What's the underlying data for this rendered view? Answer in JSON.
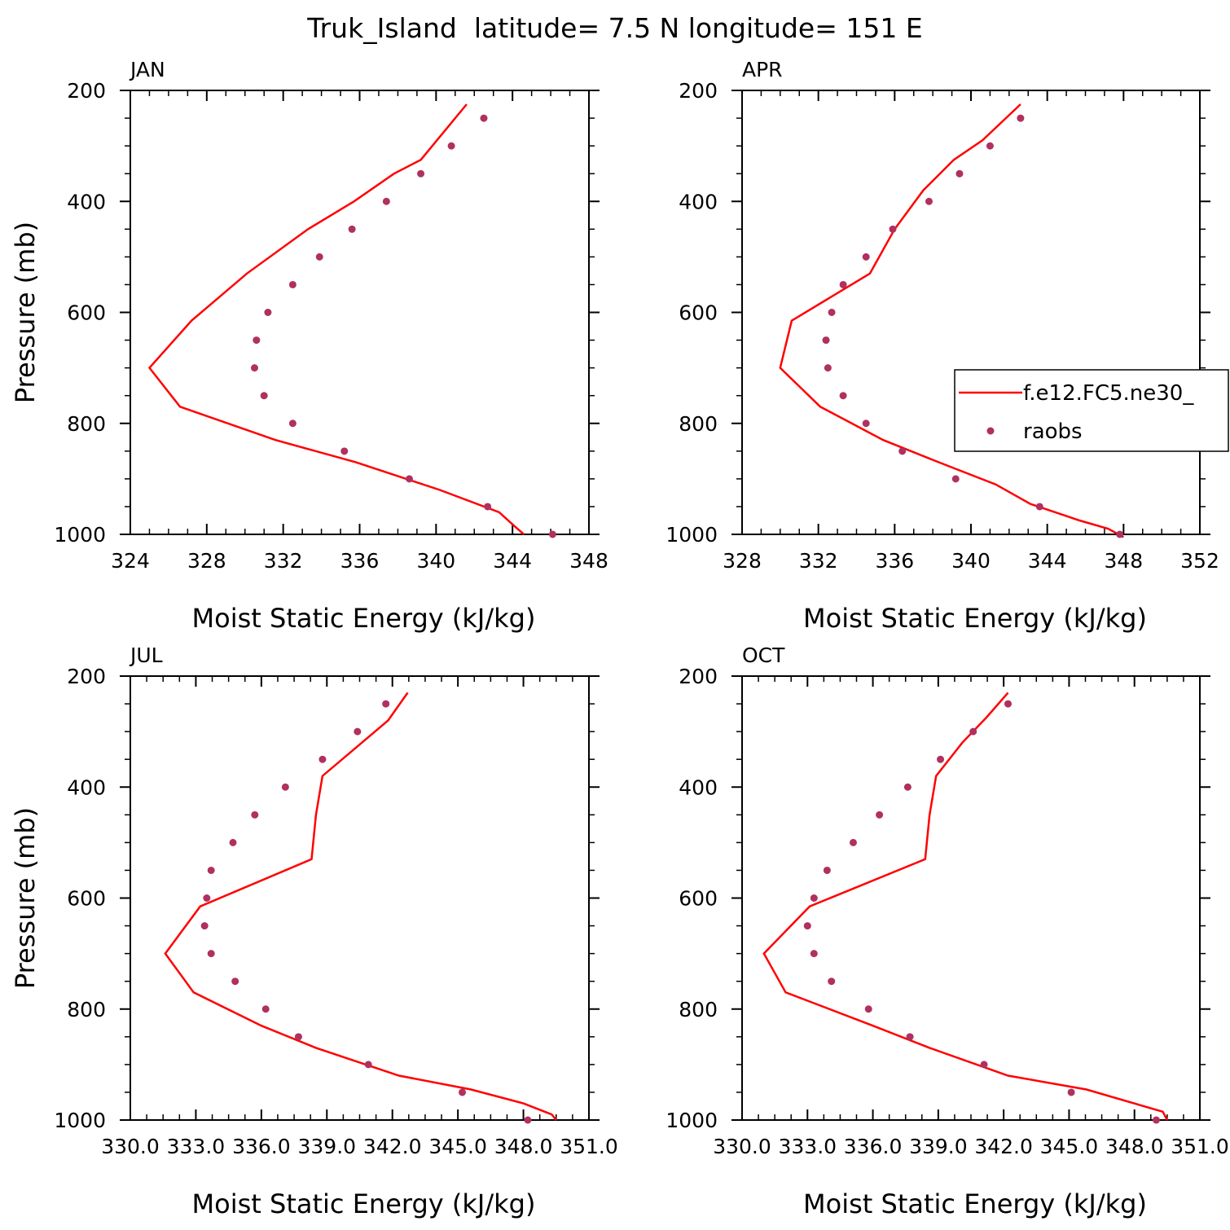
{
  "figure_title": "Truk_Island  latitude= 7.5 N longitude= 151 E",
  "colors": {
    "model": "#ff0000",
    "obs": "#b03060",
    "axis": "#000000"
  },
  "legend": {
    "model_label": "f.e12.FC5.ne30_",
    "obs_label": "raobs",
    "panel_month": "APR"
  },
  "chart_data": [
    {
      "type": "line",
      "month": "JAN",
      "xlabel": "Moist Static Energy (kJ/kg)",
      "ylabel": "Pressure (mb)",
      "xlim": [
        324,
        348
      ],
      "x_ticks": [
        324,
        328,
        332,
        336,
        340,
        344,
        348
      ],
      "x_tick_labels": [
        "324",
        "328",
        "332",
        "336",
        "340",
        "344",
        "348"
      ],
      "ylim": [
        200,
        1000
      ],
      "y_ticks": [
        200,
        400,
        600,
        800,
        1000
      ],
      "y_tick_labels": [
        "200",
        "400",
        "600",
        "800",
        "1000"
      ],
      "model": {
        "name": "f.e12.FC5.ne30_",
        "pressure": [
          225,
          325,
          350,
          400,
          450,
          530,
          615,
          700,
          770,
          830,
          870,
          920,
          960,
          985,
          1000
        ],
        "mse": [
          341.6,
          339.2,
          337.8,
          335.7,
          333.3,
          330.1,
          327.2,
          325.0,
          326.6,
          331.6,
          335.8,
          340.2,
          343.3,
          344.1,
          344.6
        ]
      },
      "obs": {
        "name": "raobs",
        "pressure": [
          250,
          300,
          350,
          400,
          450,
          500,
          550,
          600,
          650,
          700,
          750,
          800,
          850,
          900,
          950,
          1000
        ],
        "mse": [
          342.5,
          340.8,
          339.2,
          337.4,
          335.6,
          333.9,
          332.5,
          331.2,
          330.6,
          330.5,
          331.0,
          332.5,
          335.2,
          338.6,
          342.7,
          346.1
        ]
      }
    },
    {
      "type": "line",
      "month": "APR",
      "xlabel": "Moist Static Energy (kJ/kg)",
      "ylabel": "",
      "xlim": [
        328,
        352
      ],
      "x_ticks": [
        328,
        332,
        336,
        340,
        344,
        348,
        352
      ],
      "x_tick_labels": [
        "328",
        "332",
        "336",
        "340",
        "344",
        "348",
        "352"
      ],
      "ylim": [
        200,
        1000
      ],
      "y_ticks": [
        200,
        400,
        600,
        800,
        1000
      ],
      "y_tick_labels": [
        "200",
        "400",
        "600",
        "800",
        "1000"
      ],
      "model": {
        "name": "f.e12.FC5.ne30_",
        "pressure": [
          225,
          290,
          325,
          380,
          450,
          530,
          615,
          700,
          770,
          830,
          870,
          910,
          945,
          975,
          990,
          1005
        ],
        "mse": [
          342.6,
          340.6,
          339.1,
          337.5,
          336.0,
          334.7,
          330.6,
          330.0,
          332.1,
          335.4,
          338.3,
          341.3,
          343.1,
          345.7,
          347.2,
          348.0
        ]
      },
      "obs": {
        "name": "raobs",
        "pressure": [
          250,
          300,
          350,
          400,
          450,
          500,
          550,
          600,
          650,
          700,
          750,
          800,
          850,
          900,
          950,
          1000
        ],
        "mse": [
          342.6,
          341.0,
          339.4,
          337.8,
          335.9,
          334.5,
          333.3,
          332.7,
          332.4,
          332.5,
          333.3,
          334.5,
          336.4,
          339.2,
          343.6,
          347.8
        ]
      }
    },
    {
      "type": "line",
      "month": "JUL",
      "xlabel": "Moist Static Energy (kJ/kg)",
      "ylabel": "Pressure (mb)",
      "xlim": [
        330.0,
        351.0
      ],
      "x_ticks": [
        330.0,
        333.0,
        336.0,
        339.0,
        342.0,
        345.0,
        348.0,
        351.0
      ],
      "x_tick_labels": [
        "330.0",
        "333.0",
        "336.0",
        "339.0",
        "342.0",
        "345.0",
        "348.0",
        "351.0"
      ],
      "ylim": [
        200,
        1000
      ],
      "y_ticks": [
        200,
        400,
        600,
        800,
        1000
      ],
      "y_tick_labels": [
        "200",
        "400",
        "600",
        "800",
        "1000"
      ],
      "model": {
        "name": "f.e12.FC5.ne30_",
        "pressure": [
          230,
          280,
          380,
          450,
          530,
          615,
          700,
          770,
          830,
          870,
          920,
          945,
          970,
          990,
          1000
        ],
        "mse": [
          342.7,
          341.8,
          338.8,
          338.5,
          338.3,
          333.2,
          331.6,
          332.9,
          336.0,
          338.5,
          342.3,
          345.6,
          348.0,
          349.3,
          349.5
        ]
      },
      "obs": {
        "name": "raobs",
        "pressure": [
          250,
          300,
          350,
          400,
          450,
          500,
          550,
          600,
          650,
          700,
          750,
          800,
          850,
          900,
          950,
          1000
        ],
        "mse": [
          341.7,
          340.4,
          338.8,
          337.1,
          335.7,
          334.7,
          333.7,
          333.5,
          333.4,
          333.7,
          334.8,
          336.2,
          337.7,
          340.9,
          345.2,
          348.2
        ]
      }
    },
    {
      "type": "line",
      "month": "OCT",
      "xlabel": "Moist Static Energy (kJ/kg)",
      "ylabel": "",
      "xlim": [
        330.0,
        351.0
      ],
      "x_ticks": [
        330.0,
        333.0,
        336.0,
        339.0,
        342.0,
        345.0,
        348.0,
        351.0
      ],
      "x_tick_labels": [
        "330.0",
        "333.0",
        "336.0",
        "339.0",
        "342.0",
        "345.0",
        "348.0",
        "351.0"
      ],
      "ylim": [
        200,
        1000
      ],
      "y_ticks": [
        200,
        400,
        600,
        800,
        1000
      ],
      "y_tick_labels": [
        "200",
        "400",
        "600",
        "800",
        "1000"
      ],
      "model": {
        "name": "f.e12.FC5.ne30_",
        "pressure": [
          230,
          275,
          320,
          380,
          450,
          530,
          615,
          700,
          770,
          830,
          870,
          920,
          945,
          985,
          1000
        ],
        "mse": [
          342.2,
          341.2,
          340.1,
          338.9,
          338.6,
          338.4,
          333.1,
          331.0,
          332.0,
          336.0,
          338.6,
          342.2,
          345.8,
          349.3,
          349.5
        ]
      },
      "obs": {
        "name": "raobs",
        "pressure": [
          250,
          300,
          350,
          400,
          450,
          500,
          550,
          600,
          650,
          700,
          750,
          800,
          850,
          900,
          950,
          1000
        ],
        "mse": [
          342.2,
          340.6,
          339.1,
          337.6,
          336.3,
          335.1,
          333.9,
          333.3,
          333.0,
          333.3,
          334.1,
          335.8,
          337.7,
          341.1,
          345.1,
          349.0
        ]
      }
    }
  ]
}
